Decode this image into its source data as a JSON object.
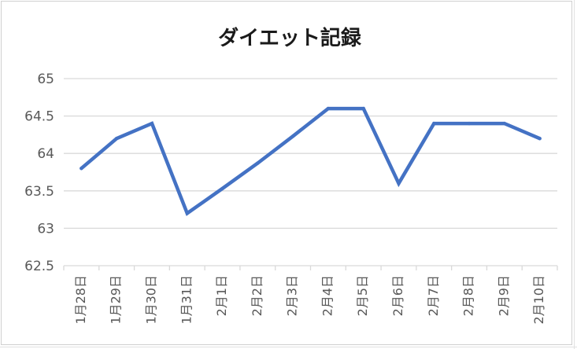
{
  "chart_data": {
    "type": "line",
    "title": "ダイエット記録",
    "categories": [
      "1月28日",
      "1月29日",
      "1月30日",
      "1月31日",
      "2月1日",
      "2月2日",
      "2月3日",
      "2月4日",
      "2月5日",
      "2月6日",
      "2月7日",
      "2月8日",
      "2月9日",
      "2月10日"
    ],
    "series": [
      {
        "values": [
          63.8,
          64.2,
          64.4,
          63.2,
          63.53,
          63.87,
          64.23,
          64.6,
          64.6,
          63.6,
          64.4,
          64.4,
          64.4,
          64.2
        ]
      }
    ],
    "ylim": [
      62.5,
      65
    ],
    "yticks": [
      "62.5",
      "63",
      "63.5",
      "64",
      "64.5",
      "65"
    ],
    "grid": true,
    "legend": "none",
    "line_color": "#4472c4",
    "grid_color": "#d9d9d9"
  }
}
